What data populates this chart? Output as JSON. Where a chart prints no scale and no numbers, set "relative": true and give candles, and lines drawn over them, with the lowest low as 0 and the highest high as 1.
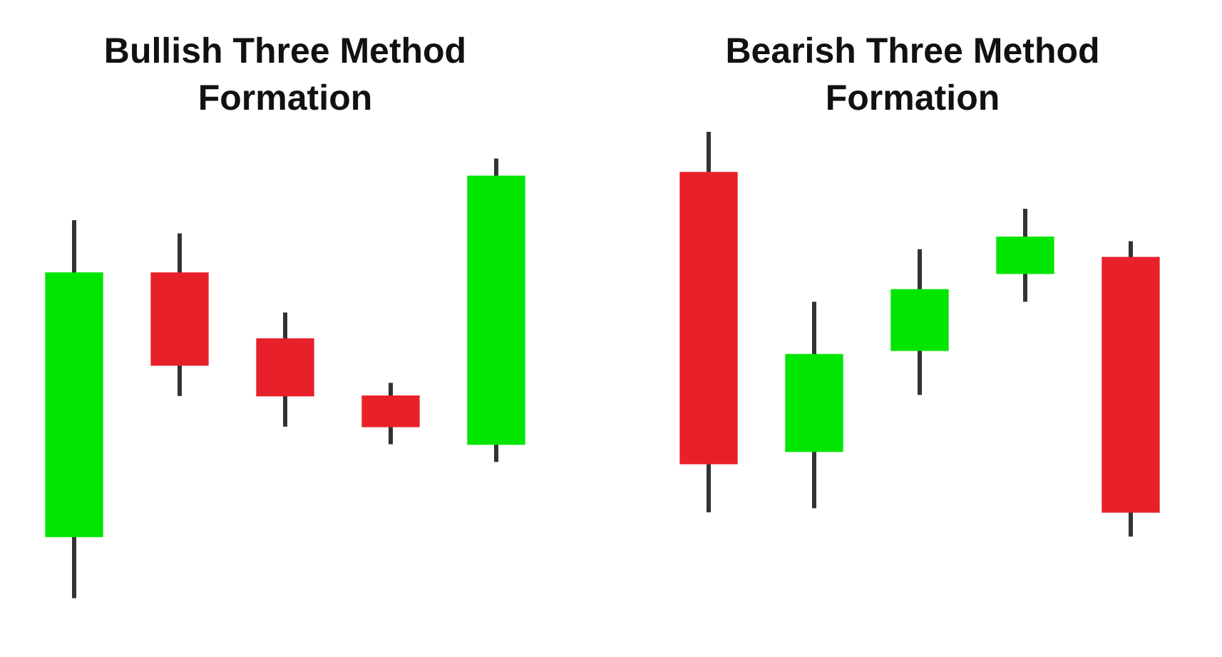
{
  "chart_data": [
    {
      "type": "candlestick",
      "title": "Bullish Three Method Formation",
      "categories": [
        null,
        null,
        null,
        null,
        null
      ],
      "relative": true,
      "tick_labels": false,
      "ohlc": [
        [
          0.14,
          0.86,
          0,
          0.74
        ],
        [
          0.74,
          0.83,
          0.46,
          0.53
        ],
        [
          0.59,
          0.65,
          0.39,
          0.46
        ],
        [
          0.46,
          0.49,
          0.35,
          0.39
        ],
        [
          0.35,
          1,
          0.31,
          0.96
        ]
      ],
      "colors": [
        "#00e600",
        "#e8202a",
        "#e8202a",
        "#e8202a",
        "#00e600"
      ]
    },
    {
      "type": "candlestick",
      "title": "Bearish Three Method Formation",
      "categories": [
        null,
        null,
        null,
        null,
        null
      ],
      "relative": true,
      "tick_labels": false,
      "ohlc": [
        [
          0.9,
          1,
          0.06,
          0.18
        ],
        [
          0.21,
          0.58,
          0.07,
          0.45
        ],
        [
          0.46,
          0.71,
          0.35,
          0.61
        ],
        [
          0.65,
          0.81,
          0.58,
          0.74
        ],
        [
          0.69,
          0.73,
          0,
          0.06
        ]
      ],
      "colors": [
        "#e8202a",
        "#00e600",
        "#00e600",
        "#00e600",
        "#e8202a"
      ]
    }
  ]
}
